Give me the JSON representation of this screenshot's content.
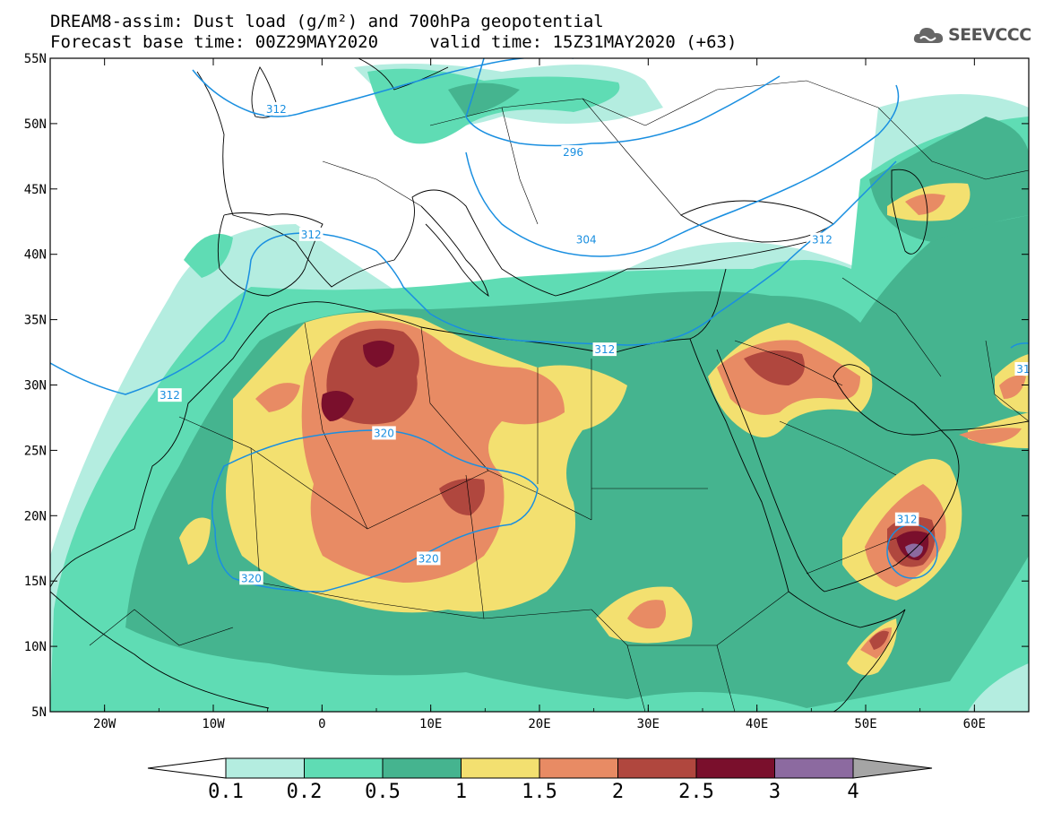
{
  "title": {
    "line1": "DREAM8-assim: Dust load (g/m²) and 700hPa geopotential",
    "line2": "Forecast base time: 00Z29MAY2020     valid time: 15Z31MAY2020 (+63)"
  },
  "logo": {
    "text": "SEEVCCC",
    "icon": "cloud-icon"
  },
  "axes": {
    "lon_range": [
      -25,
      65
    ],
    "lat_range": [
      5,
      55
    ],
    "x_ticks": [
      {
        "value": -20,
        "label": "20W"
      },
      {
        "value": -10,
        "label": "10W"
      },
      {
        "value": 0,
        "label": "0"
      },
      {
        "value": 10,
        "label": "10E"
      },
      {
        "value": 20,
        "label": "20E"
      },
      {
        "value": 30,
        "label": "30E"
      },
      {
        "value": 40,
        "label": "40E"
      },
      {
        "value": 50,
        "label": "50E"
      },
      {
        "value": 60,
        "label": "60E"
      }
    ],
    "y_ticks": [
      {
        "value": 55,
        "label": "55N"
      },
      {
        "value": 50,
        "label": "50N"
      },
      {
        "value": 45,
        "label": "45N"
      },
      {
        "value": 40,
        "label": "40N"
      },
      {
        "value": 35,
        "label": "35N"
      },
      {
        "value": 30,
        "label": "30N"
      },
      {
        "value": 25,
        "label": "25N"
      },
      {
        "value": 20,
        "label": "20N"
      },
      {
        "value": 15,
        "label": "15N"
      },
      {
        "value": 10,
        "label": "10N"
      },
      {
        "value": 5,
        "label": "5N"
      }
    ]
  },
  "colorbar": {
    "labels": [
      "0.1",
      "0.2",
      "0.5",
      "1",
      "1.5",
      "2",
      "2.5",
      "3",
      "4"
    ],
    "colors": [
      "#b4ede0",
      "#5fdcb4",
      "#45b48f",
      "#f3e070",
      "#e88b64",
      "#b0473e",
      "#7a0f2c",
      "#8c6aa0"
    ],
    "under_color": "#ffffff",
    "over_color": "#a5a5a5"
  },
  "contour_labels": [
    {
      "text": "312",
      "lon": -14,
      "lat": 29.2
    },
    {
      "text": "312",
      "lon": -1,
      "lat": 41.5
    },
    {
      "text": "312",
      "lon": 26,
      "lat": 32.7
    },
    {
      "text": "312",
      "lon": 46,
      "lat": 41.1
    },
    {
      "text": "312",
      "lon": 53.8,
      "lat": 19.7
    },
    {
      "text": "31",
      "lon": 64.5,
      "lat": 31.2
    },
    {
      "text": "320",
      "lon": 5.7,
      "lat": 26.3
    },
    {
      "text": "320",
      "lon": 9.8,
      "lat": 16.7
    },
    {
      "text": "320",
      "lon": -6.5,
      "lat": 15.2
    },
    {
      "text": "304",
      "lon": 24.3,
      "lat": 41.1
    },
    {
      "text": "296",
      "lon": 23.1,
      "lat": 47.8
    },
    {
      "text": "312",
      "lon": -4.2,
      "lat": 51.1
    }
  ]
}
